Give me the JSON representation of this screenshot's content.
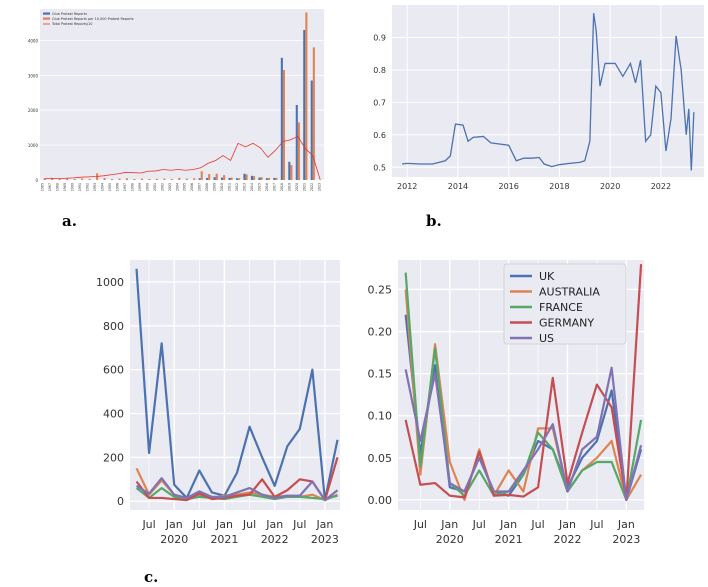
{
  "panel_labels": {
    "a": "a.",
    "b": "b.",
    "c": "c."
  },
  "colors": {
    "bg": "#eaeaf2",
    "grid": "#ffffff",
    "blue": "#4c72b0",
    "orange": "#dd8452",
    "green": "#55a868",
    "red": "#c44e52",
    "purple": "#8172b3",
    "line_red": "#e8332a"
  },
  "chart_data": [
    {
      "id": "a",
      "type": "bar",
      "title": "",
      "legend": [
        "Glue Protest Reports",
        "Glue Protest Reports per 10,000 Protest Reports",
        "Total Protest Reports/10"
      ],
      "legend_position": "top-left",
      "categories": [
        "1985",
        "1987",
        "1988",
        "1989",
        "1990",
        "1991",
        "1992",
        "1993",
        "1994",
        "1995",
        "1996",
        "1997",
        "1998",
        "1999",
        "2000",
        "2001",
        "2002",
        "2003",
        "2004",
        "2005",
        "2006",
        "2007",
        "2008",
        "2009",
        "2010",
        "2011",
        "2012",
        "2013",
        "2014",
        "2015",
        "2016",
        "2017",
        "2018",
        "2019",
        "2020",
        "2021",
        "2022",
        "2023"
      ],
      "series": [
        {
          "name": "Glue Protest Reports",
          "kind": "bar",
          "values": [
            0,
            0,
            0,
            0,
            0,
            0,
            0,
            0,
            0,
            0,
            0,
            0,
            0,
            0,
            0,
            0,
            0,
            0,
            0,
            0,
            0,
            50,
            60,
            80,
            70,
            60,
            50,
            180,
            120,
            70,
            50,
            60,
            3500,
            520,
            2150,
            4300,
            2850,
            0
          ]
        },
        {
          "name": "Glue Protest Reports per 10,000 Protest Reports",
          "kind": "bar",
          "values": [
            30,
            40,
            30,
            40,
            30,
            40,
            30,
            190,
            60,
            30,
            40,
            50,
            30,
            40,
            30,
            30,
            40,
            30,
            60,
            40,
            50,
            250,
            170,
            180,
            140,
            70,
            50,
            160,
            110,
            80,
            60,
            60,
            3150,
            430,
            1650,
            4800,
            3800,
            0
          ]
        },
        {
          "name": "Total Protest Reports/10",
          "kind": "line",
          "values": [
            30,
            50,
            40,
            50,
            60,
            80,
            90,
            100,
            120,
            150,
            180,
            220,
            210,
            200,
            250,
            260,
            300,
            280,
            300,
            280,
            300,
            350,
            480,
            560,
            700,
            560,
            1050,
            950,
            1050,
            920,
            650,
            850,
            1100,
            1150,
            1250,
            900,
            700,
            0
          ]
        }
      ],
      "ylim": [
        0,
        4900
      ],
      "yticks": [
        0,
        1000,
        2000,
        3000,
        4000
      ]
    },
    {
      "id": "b",
      "type": "line",
      "title": "",
      "series": [
        {
          "name": "series",
          "x": [
            2011.8,
            2012.0,
            2012.5,
            2013.0,
            2013.5,
            2013.7,
            2013.9,
            2014.2,
            2014.4,
            2014.6,
            2015.0,
            2015.3,
            2015.6,
            2016.0,
            2016.3,
            2016.6,
            2016.9,
            2017.2,
            2017.4,
            2017.7,
            2018.0,
            2018.4,
            2018.8,
            2019.0,
            2019.2,
            2019.35,
            2019.45,
            2019.6,
            2019.8,
            2020.0,
            2020.2,
            2020.5,
            2020.8,
            2021.0,
            2021.2,
            2021.4,
            2021.6,
            2021.8,
            2022.0,
            2022.2,
            2022.4,
            2022.6,
            2022.8,
            2023.0,
            2023.1,
            2023.2,
            2023.3
          ],
          "y": [
            0.51,
            0.512,
            0.51,
            0.51,
            0.52,
            0.535,
            0.633,
            0.63,
            0.58,
            0.592,
            0.595,
            0.575,
            0.572,
            0.568,
            0.52,
            0.528,
            0.528,
            0.53,
            0.51,
            0.502,
            0.508,
            0.512,
            0.515,
            0.52,
            0.58,
            0.975,
            0.92,
            0.75,
            0.82,
            0.82,
            0.82,
            0.78,
            0.82,
            0.76,
            0.83,
            0.58,
            0.6,
            0.75,
            0.73,
            0.55,
            0.65,
            0.905,
            0.8,
            0.6,
            0.68,
            0.49,
            0.67
          ]
        }
      ],
      "xlim": [
        2011.4,
        2023.7
      ],
      "ylim": [
        0.47,
        1.0
      ],
      "xticks": [
        2012,
        2014,
        2016,
        2018,
        2020,
        2022
      ],
      "yticks": [
        0.5,
        0.6,
        0.7,
        0.8,
        0.9
      ]
    },
    {
      "id": "c-left",
      "type": "line",
      "title": "",
      "x": [
        2019.25,
        2019.5,
        2019.75,
        2020.0,
        2020.25,
        2020.5,
        2020.75,
        2021.0,
        2021.25,
        2021.5,
        2021.75,
        2022.0,
        2022.25,
        2022.5,
        2022.75,
        2023.0,
        2023.25
      ],
      "series": [
        {
          "name": "UK",
          "values": [
            1060,
            220,
            720,
            75,
            15,
            140,
            40,
            25,
            130,
            340,
            200,
            70,
            250,
            330,
            600,
            5,
            280
          ]
        },
        {
          "name": "AUSTRALIA",
          "values": [
            150,
            30,
            95,
            30,
            10,
            30,
            15,
            25,
            30,
            40,
            30,
            20,
            25,
            20,
            30,
            5,
            30
          ]
        },
        {
          "name": "FRANCE",
          "values": [
            60,
            15,
            60,
            20,
            10,
            20,
            15,
            10,
            20,
            30,
            20,
            10,
            20,
            20,
            15,
            10,
            25
          ]
        },
        {
          "name": "GERMANY",
          "values": [
            90,
            15,
            15,
            10,
            5,
            35,
            10,
            15,
            25,
            30,
            100,
            20,
            50,
            100,
            90,
            5,
            200
          ]
        },
        {
          "name": "US",
          "values": [
            70,
            35,
            105,
            30,
            15,
            45,
            20,
            20,
            40,
            60,
            30,
            15,
            25,
            25,
            90,
            5,
            50
          ]
        }
      ],
      "ylim": [
        -40,
        1100
      ],
      "yticks": [
        0,
        200,
        400,
        600,
        800,
        1000
      ],
      "xticks_major": [
        "Jul",
        "Jan",
        "Jul",
        "Jan",
        "Jul",
        "Jan",
        "Jul",
        "Jan"
      ],
      "xticks_year": [
        "2020",
        "2021",
        "2022",
        "2023"
      ]
    },
    {
      "id": "c-right",
      "type": "line",
      "title": "",
      "legend": [
        "UK",
        "AUSTRALIA",
        "FRANCE",
        "GERMANY",
        "US"
      ],
      "legend_position": "top-right",
      "x": [
        2019.25,
        2019.5,
        2019.75,
        2020.0,
        2020.25,
        2020.5,
        2020.75,
        2021.0,
        2021.25,
        2021.5,
        2021.75,
        2022.0,
        2022.25,
        2022.5,
        2022.75,
        2023.0,
        2023.25
      ],
      "series": [
        {
          "name": "UK",
          "values": [
            0.22,
            0.055,
            0.16,
            0.015,
            0.01,
            0.05,
            0.01,
            0.005,
            0.03,
            0.07,
            0.06,
            0.015,
            0.05,
            0.07,
            0.13,
            0.0,
            0.06
          ]
        },
        {
          "name": "AUSTRALIA",
          "values": [
            0.25,
            0.03,
            0.185,
            0.045,
            0.0,
            0.06,
            0.005,
            0.035,
            0.01,
            0.085,
            0.085,
            0.01,
            0.035,
            0.05,
            0.07,
            0.0,
            0.03
          ]
        },
        {
          "name": "FRANCE",
          "values": [
            0.27,
            0.04,
            0.18,
            0.02,
            0.005,
            0.035,
            0.005,
            0.01,
            0.03,
            0.08,
            0.06,
            0.01,
            0.035,
            0.045,
            0.045,
            0.0,
            0.095
          ]
        },
        {
          "name": "GERMANY",
          "values": [
            0.095,
            0.018,
            0.02,
            0.005,
            0.003,
            0.057,
            0.005,
            0.006,
            0.004,
            0.015,
            0.145,
            0.02,
            0.08,
            0.137,
            0.11,
            0.0,
            0.28
          ]
        },
        {
          "name": "US",
          "values": [
            0.155,
            0.07,
            0.15,
            0.02,
            0.01,
            0.05,
            0.01,
            0.01,
            0.035,
            0.06,
            0.09,
            0.01,
            0.06,
            0.075,
            0.157,
            0.0,
            0.065
          ]
        }
      ],
      "ylim": [
        -0.012,
        0.285
      ],
      "yticks": [
        0.0,
        0.05,
        0.1,
        0.15,
        0.2,
        0.25
      ],
      "ytick_labels": [
        "0.00",
        "0.05",
        "0.10",
        "0.15",
        "0.20",
        "0.25"
      ],
      "xticks_major": [
        "Jul",
        "Jan",
        "Jul",
        "Jan",
        "Jul",
        "Jan",
        "Jul",
        "Jan"
      ],
      "xticks_year": [
        "2020",
        "2021",
        "2022",
        "2023"
      ]
    }
  ]
}
